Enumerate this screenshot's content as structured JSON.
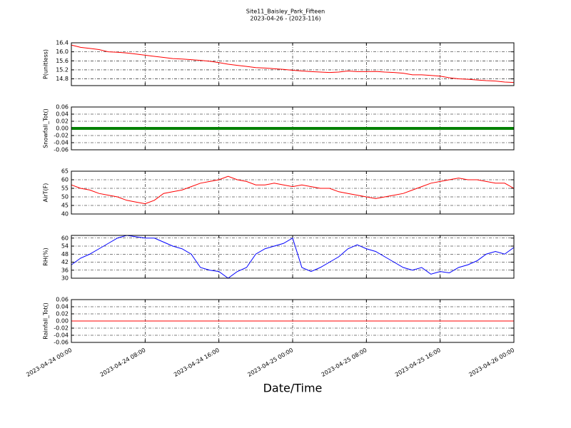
{
  "chart_data": [
    {
      "type": "line",
      "title": "Site11_Baisley_Park_Fifteen",
      "subtitle": "2023-04-26 - (2023-116)",
      "ylabel": "P(unitless)",
      "color": "#ff0000",
      "linewidth": 1,
      "x": [
        "2023-04-24 00:00",
        "2023-04-24 01:00",
        "2023-04-24 02:00",
        "2023-04-24 03:00",
        "2023-04-24 04:00",
        "2023-04-24 05:00",
        "2023-04-24 06:00",
        "2023-04-24 07:00",
        "2023-04-24 08:00",
        "2023-04-24 09:00",
        "2023-04-24 10:00",
        "2023-04-24 11:00",
        "2023-04-24 12:00",
        "2023-04-24 13:00",
        "2023-04-24 14:00",
        "2023-04-24 15:00",
        "2023-04-24 16:00",
        "2023-04-24 17:00",
        "2023-04-24 18:00",
        "2023-04-24 19:00",
        "2023-04-24 20:00",
        "2023-04-24 21:00",
        "2023-04-24 22:00",
        "2023-04-24 23:00",
        "2023-04-25 00:00",
        "2023-04-25 01:00",
        "2023-04-25 02:00",
        "2023-04-25 03:00",
        "2023-04-25 04:00",
        "2023-04-25 05:00",
        "2023-04-25 06:00",
        "2023-04-25 07:00",
        "2023-04-25 08:00",
        "2023-04-25 09:00",
        "2023-04-25 10:00",
        "2023-04-25 11:00",
        "2023-04-25 12:00",
        "2023-04-25 13:00",
        "2023-04-25 14:00",
        "2023-04-25 15:00",
        "2023-04-25 16:00",
        "2023-04-25 17:00",
        "2023-04-25 18:00",
        "2023-04-25 19:00",
        "2023-04-25 20:00",
        "2023-04-25 21:00",
        "2023-04-25 22:00",
        "2023-04-25 23:00",
        "2023-04-26 00:00"
      ],
      "values": [
        16.3,
        16.2,
        16.15,
        16.1,
        16.0,
        15.98,
        15.95,
        15.9,
        15.85,
        15.8,
        15.75,
        15.7,
        15.68,
        15.65,
        15.62,
        15.58,
        15.52,
        15.45,
        15.4,
        15.35,
        15.3,
        15.28,
        15.25,
        15.22,
        15.18,
        15.15,
        15.12,
        15.1,
        15.08,
        15.1,
        15.15,
        15.12,
        15.12,
        15.13,
        15.1,
        15.08,
        15.05,
        14.98,
        14.98,
        14.95,
        14.92,
        14.85,
        14.8,
        14.78,
        14.75,
        14.72,
        14.7,
        14.66,
        14.64
      ],
      "xlim": [
        "2023-04-24 00:00",
        "2023-04-26 00:00"
      ],
      "ylim": [
        14.5,
        16.4
      ],
      "yticks": [
        14.8,
        15.2,
        15.6,
        {
          "value": 16,
          "label": "16.0"
        },
        16.4
      ],
      "grid": true
    },
    {
      "type": "line",
      "ylabel": "Snowfall_Tot()",
      "color": "#008000",
      "linewidth": 4,
      "x": [
        "2023-04-24 00:00",
        "2023-04-24 01:00",
        "2023-04-24 02:00",
        "2023-04-24 03:00",
        "2023-04-24 04:00",
        "2023-04-24 05:00",
        "2023-04-24 06:00",
        "2023-04-24 07:00",
        "2023-04-24 08:00",
        "2023-04-24 09:00",
        "2023-04-24 10:00",
        "2023-04-24 11:00",
        "2023-04-24 12:00",
        "2023-04-24 13:00",
        "2023-04-24 14:00",
        "2023-04-24 15:00",
        "2023-04-24 16:00",
        "2023-04-24 17:00",
        "2023-04-24 18:00",
        "2023-04-24 19:00",
        "2023-04-24 20:00",
        "2023-04-24 21:00",
        "2023-04-24 22:00",
        "2023-04-24 23:00",
        "2023-04-25 00:00",
        "2023-04-25 01:00",
        "2023-04-25 02:00",
        "2023-04-25 03:00",
        "2023-04-25 04:00",
        "2023-04-25 05:00",
        "2023-04-25 06:00",
        "2023-04-25 07:00",
        "2023-04-25 08:00",
        "2023-04-25 09:00",
        "2023-04-25 10:00",
        "2023-04-25 11:00",
        "2023-04-25 12:00",
        "2023-04-25 13:00",
        "2023-04-25 14:00",
        "2023-04-25 15:00",
        "2023-04-25 16:00",
        "2023-04-25 17:00",
        "2023-04-25 18:00",
        "2023-04-25 19:00",
        "2023-04-25 20:00",
        "2023-04-25 21:00",
        "2023-04-25 22:00",
        "2023-04-25 23:00",
        "2023-04-26 00:00"
      ],
      "values": [
        0,
        0,
        0,
        0,
        0,
        0,
        0,
        0,
        0,
        0,
        0,
        0,
        0,
        0,
        0,
        0,
        0,
        0,
        0,
        0,
        0,
        0,
        0,
        0,
        0,
        0,
        0,
        0,
        0,
        0,
        0,
        0,
        0,
        0,
        0,
        0,
        0,
        0,
        0,
        0,
        0,
        0,
        0,
        0,
        0,
        0,
        0,
        0,
        0
      ],
      "xlim": [
        "2023-04-24 00:00",
        "2023-04-26 00:00"
      ],
      "ylim": [
        -0.06,
        0.06
      ],
      "yticks": [
        -0.06,
        -0.04,
        -0.02,
        {
          "value": 0,
          "label": "0.00"
        },
        0.02,
        0.04,
        0.06
      ],
      "grid": true
    },
    {
      "type": "line",
      "ylabel": "AirT(F)",
      "color": "#ff0000",
      "linewidth": 1,
      "x": [
        "2023-04-24 00:00",
        "2023-04-24 01:00",
        "2023-04-24 02:00",
        "2023-04-24 03:00",
        "2023-04-24 04:00",
        "2023-04-24 05:00",
        "2023-04-24 06:00",
        "2023-04-24 07:00",
        "2023-04-24 08:00",
        "2023-04-24 09:00",
        "2023-04-24 10:00",
        "2023-04-24 11:00",
        "2023-04-24 12:00",
        "2023-04-24 13:00",
        "2023-04-24 14:00",
        "2023-04-24 15:00",
        "2023-04-24 16:00",
        "2023-04-24 17:00",
        "2023-04-24 18:00",
        "2023-04-24 19:00",
        "2023-04-24 20:00",
        "2023-04-24 21:00",
        "2023-04-24 22:00",
        "2023-04-24 23:00",
        "2023-04-25 00:00",
        "2023-04-25 01:00",
        "2023-04-25 02:00",
        "2023-04-25 03:00",
        "2023-04-25 04:00",
        "2023-04-25 05:00",
        "2023-04-25 06:00",
        "2023-04-25 07:00",
        "2023-04-25 08:00",
        "2023-04-25 09:00",
        "2023-04-25 10:00",
        "2023-04-25 11:00",
        "2023-04-25 12:00",
        "2023-04-25 13:00",
        "2023-04-25 14:00",
        "2023-04-25 15:00",
        "2023-04-25 16:00",
        "2023-04-25 17:00",
        "2023-04-25 18:00",
        "2023-04-25 19:00",
        "2023-04-25 20:00",
        "2023-04-25 21:00",
        "2023-04-25 22:00",
        "2023-04-25 23:00",
        "2023-04-26 00:00"
      ],
      "values": [
        57,
        55,
        54,
        52,
        51,
        50,
        48,
        47,
        46,
        48,
        52,
        53,
        54,
        56,
        58,
        59,
        60,
        62,
        60,
        59,
        57,
        57,
        58,
        57,
        56,
        57,
        56,
        55,
        55,
        53,
        52,
        51,
        50,
        49,
        50,
        51,
        52,
        54,
        56,
        58,
        59,
        60,
        61,
        60,
        60,
        59,
        58,
        58,
        55
      ],
      "xlim": [
        "2023-04-24 00:00",
        "2023-04-26 00:00"
      ],
      "ylim": [
        40,
        65
      ],
      "yticks": [
        40,
        45,
        50,
        55,
        60,
        65
      ],
      "grid": true
    },
    {
      "type": "line",
      "ylabel": "RH(%)",
      "color": "#0000ff",
      "linewidth": 1,
      "x": [
        "2023-04-24 00:00",
        "2023-04-24 01:00",
        "2023-04-24 02:00",
        "2023-04-24 03:00",
        "2023-04-24 04:00",
        "2023-04-24 05:00",
        "2023-04-24 06:00",
        "2023-04-24 07:00",
        "2023-04-24 08:00",
        "2023-04-24 09:00",
        "2023-04-24 10:00",
        "2023-04-24 11:00",
        "2023-04-24 12:00",
        "2023-04-24 13:00",
        "2023-04-24 14:00",
        "2023-04-24 15:00",
        "2023-04-24 16:00",
        "2023-04-24 17:00",
        "2023-04-24 18:00",
        "2023-04-24 19:00",
        "2023-04-24 20:00",
        "2023-04-24 21:00",
        "2023-04-24 22:00",
        "2023-04-24 23:00",
        "2023-04-25 00:00",
        "2023-04-25 01:00",
        "2023-04-25 02:00",
        "2023-04-25 03:00",
        "2023-04-25 04:00",
        "2023-04-25 05:00",
        "2023-04-25 06:00",
        "2023-04-25 07:00",
        "2023-04-25 08:00",
        "2023-04-25 09:00",
        "2023-04-25 10:00",
        "2023-04-25 11:00",
        "2023-04-25 12:00",
        "2023-04-25 13:00",
        "2023-04-25 14:00",
        "2023-04-25 15:00",
        "2023-04-25 16:00",
        "2023-04-25 17:00",
        "2023-04-25 18:00",
        "2023-04-25 19:00",
        "2023-04-25 20:00",
        "2023-04-25 21:00",
        "2023-04-25 22:00",
        "2023-04-25 23:00",
        "2023-04-26 00:00"
      ],
      "values": [
        40,
        45,
        48,
        52,
        56,
        60,
        62,
        61,
        60,
        60,
        57,
        54,
        52,
        48,
        38,
        36,
        35,
        30,
        35,
        38,
        48,
        52,
        54,
        56,
        60,
        38,
        35,
        38,
        42,
        46,
        52,
        55,
        52,
        50,
        46,
        42,
        38,
        36,
        38,
        33,
        35,
        34,
        38,
        40,
        43,
        48,
        50,
        48,
        53
      ],
      "xlim": [
        "2023-04-24 00:00",
        "2023-04-26 00:00"
      ],
      "ylim": [
        30,
        62
      ],
      "yticks": [
        30,
        36,
        42,
        48,
        54,
        60
      ],
      "grid": true
    },
    {
      "type": "line",
      "ylabel": "Rainfall_Tot()",
      "xlabel": "Date/Time",
      "color": "#ff0000",
      "linewidth": 1,
      "x": [
        "2023-04-24 00:00",
        "2023-04-24 01:00",
        "2023-04-24 02:00",
        "2023-04-24 03:00",
        "2023-04-24 04:00",
        "2023-04-24 05:00",
        "2023-04-24 06:00",
        "2023-04-24 07:00",
        "2023-04-24 08:00",
        "2023-04-24 09:00",
        "2023-04-24 10:00",
        "2023-04-24 11:00",
        "2023-04-24 12:00",
        "2023-04-24 13:00",
        "2023-04-24 14:00",
        "2023-04-24 15:00",
        "2023-04-24 16:00",
        "2023-04-24 17:00",
        "2023-04-24 18:00",
        "2023-04-24 19:00",
        "2023-04-24 20:00",
        "2023-04-24 21:00",
        "2023-04-24 22:00",
        "2023-04-24 23:00",
        "2023-04-25 00:00",
        "2023-04-25 01:00",
        "2023-04-25 02:00",
        "2023-04-25 03:00",
        "2023-04-25 04:00",
        "2023-04-25 05:00",
        "2023-04-25 06:00",
        "2023-04-25 07:00",
        "2023-04-25 08:00",
        "2023-04-25 09:00",
        "2023-04-25 10:00",
        "2023-04-25 11:00",
        "2023-04-25 12:00",
        "2023-04-25 13:00",
        "2023-04-25 14:00",
        "2023-04-25 15:00",
        "2023-04-25 16:00",
        "2023-04-25 17:00",
        "2023-04-25 18:00",
        "2023-04-25 19:00",
        "2023-04-25 20:00",
        "2023-04-25 21:00",
        "2023-04-25 22:00",
        "2023-04-25 23:00",
        "2023-04-26 00:00"
      ],
      "values": [
        0,
        0,
        0,
        0,
        0,
        0,
        0,
        0,
        0,
        0,
        0,
        0,
        0,
        0,
        0,
        0,
        0,
        0,
        0,
        0,
        0,
        0,
        0,
        0,
        0,
        0,
        0,
        0,
        0,
        0,
        0,
        0,
        0,
        0,
        0,
        0,
        0,
        0,
        0,
        0,
        0,
        0,
        0,
        0,
        0,
        0,
        0,
        0,
        0
      ],
      "xlim": [
        "2023-04-24 00:00",
        "2023-04-26 00:00"
      ],
      "ylim": [
        -0.06,
        0.06
      ],
      "yticks": [
        -0.06,
        -0.04,
        -0.02,
        {
          "value": 0,
          "label": "0.00"
        },
        0.02,
        0.04,
        0.06
      ],
      "grid": true,
      "xticks": [
        "2023-04-24 00:00",
        "2023-04-24 08:00",
        "2023-04-24 16:00",
        "2023-04-25 00:00",
        "2023-04-25 08:00",
        "2023-04-25 16:00",
        "2023-04-26 00:00"
      ]
    }
  ]
}
